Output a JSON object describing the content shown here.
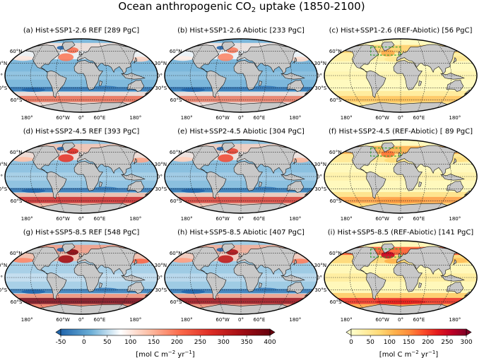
{
  "figure": {
    "title_prefix": "Ocean anthropogenic CO",
    "title_sub": "2",
    "title_suffix": " uptake (1850-2100)"
  },
  "panels": [
    {
      "id": "a",
      "label": "(a) Hist+SSP1-2.6 REF [289 PgC]",
      "scale": "ref",
      "intensity": 0.45
    },
    {
      "id": "b",
      "label": "(b) Hist+SSP1-2.6 Abiotic [233 PgC]",
      "scale": "ref",
      "intensity": 0.42
    },
    {
      "id": "c",
      "label": "(c) Hist+SSP1-2.6 (REF-Abiotic) [56 PgC]",
      "scale": "diff",
      "intensity": 0.3
    },
    {
      "id": "d",
      "label": "(d) Hist+SSP2-4.5 REF [393 PgC]",
      "scale": "ref",
      "intensity": 0.65
    },
    {
      "id": "e",
      "label": "(e) Hist+SSP2-4.5 Abiotic [304 PgC]",
      "scale": "ref",
      "intensity": 0.58
    },
    {
      "id": "f",
      "label": "(f) Hist+SSP2-4.5 (REF-Abiotic) [ 89 PgC]",
      "scale": "diff",
      "intensity": 0.45
    },
    {
      "id": "g",
      "label": "(g) Hist+SSP5-8.5 REF [548 PgC]",
      "scale": "ref",
      "intensity": 0.9
    },
    {
      "id": "h",
      "label": "(h) Hist+SSP5-8.5 Abiotic [407 PgC]",
      "scale": "ref",
      "intensity": 0.8
    },
    {
      "id": "i",
      "label": "(i) Hist+SSP5-8.5 (REF-Abiotic) [141 PgC]",
      "scale": "diff",
      "intensity": 0.75
    }
  ],
  "map_labels": {
    "lat_labels": [
      "60°N",
      "30°N",
      "0°",
      "30°S",
      "60°S"
    ],
    "lon_labels": [
      "180°",
      "60°W",
      "0°",
      "60°E",
      "180°"
    ]
  },
  "colorbars": [
    {
      "id": "ref",
      "ticks": [
        "-50",
        "0",
        "50",
        "100",
        "150",
        "200",
        "250",
        "300",
        "350",
        "400"
      ],
      "tick_values": [
        -50,
        0,
        50,
        100,
        150,
        200,
        250,
        300,
        350,
        400
      ],
      "range": [
        -50,
        400
      ],
      "unit_prefix": "[mol C m",
      "unit_sup1": "−2",
      "unit_mid": " yr",
      "unit_sup2": "−1",
      "unit_suffix": "]",
      "colors": [
        "#2166ac",
        "#6baed6",
        "#ffffff",
        "#fcbba1",
        "#fb6a4a",
        "#de2d26",
        "#a50f15",
        "#67000d"
      ]
    },
    {
      "id": "diff",
      "ticks": [
        "0",
        "50",
        "100",
        "150",
        "200",
        "250",
        "300"
      ],
      "tick_values": [
        0,
        50,
        100,
        150,
        200,
        250,
        300
      ],
      "range": [
        0,
        300
      ],
      "unit_prefix": "[mol C m",
      "unit_sup1": "−2",
      "unit_mid": " yr",
      "unit_sup2": "−1",
      "unit_suffix": "]",
      "colors": [
        "#ffffcc",
        "#ffeda0",
        "#fed976",
        "#feb24c",
        "#fd8d3c",
        "#fc4e2a",
        "#e31a1c",
        "#bd0026",
        "#800026"
      ]
    }
  ],
  "colors": {
    "land": "#c8c8c8",
    "coast": "#111111",
    "grid": "#222222"
  }
}
